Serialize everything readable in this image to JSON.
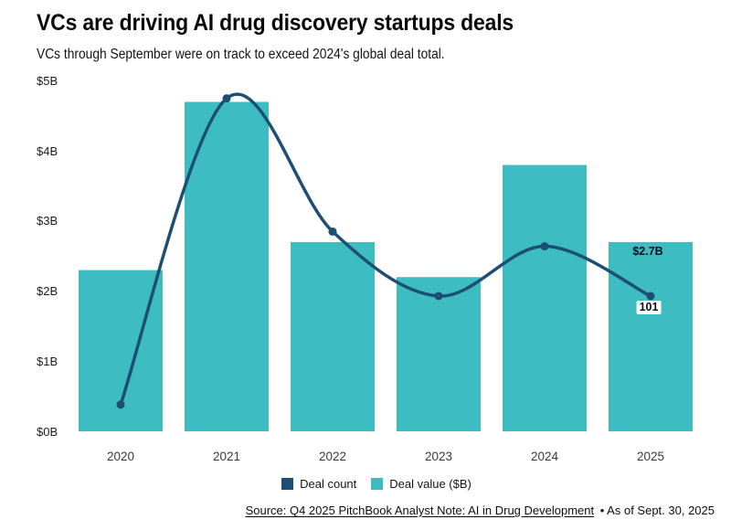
{
  "header": {
    "title": "VCs are driving AI drug discovery startups deals",
    "subtitle": "VCs through September were on track to exceed 2024's global deal total."
  },
  "chart_data": {
    "type": "bar",
    "combo": "bar+line",
    "title": "VCs are driving AI drug discovery startups deals",
    "categories": [
      "2020",
      "2021",
      "2022",
      "2023",
      "2024",
      "2025"
    ],
    "series": [
      {
        "name": "Deal value ($B)",
        "type": "bar",
        "color": "#3dbdc2",
        "values": [
          2.3,
          4.7,
          2.7,
          2.2,
          3.8,
          2.7
        ]
      },
      {
        "name": "Deal count",
        "type": "line",
        "color": "#1d4e74",
        "axis": "secondary-unlabeled",
        "left_axis_equivalent_values": [
          0.38,
          4.75,
          2.85,
          1.93,
          2.64,
          1.93
        ],
        "estimated_counts": [
          20,
          249,
          149,
          101,
          139,
          101
        ],
        "labeled_point": {
          "category": "2025",
          "label": "101"
        }
      }
    ],
    "xlabel": "",
    "ylabel": "",
    "value_axis_ticks": [
      "$0B",
      "$1B",
      "$2B",
      "$3B",
      "$4B",
      "$5B"
    ],
    "ylim": [
      0,
      5
    ],
    "grid": false,
    "legend_position": "bottom",
    "data_labels": [
      {
        "series": "Deal value ($B)",
        "category": "2025",
        "text": "$2.7B"
      },
      {
        "series": "Deal count",
        "category": "2025",
        "text": "101"
      }
    ]
  },
  "footer": {
    "source_link": "Source: Q4 2025 PitchBook Analyst Note: AI in Drug Development",
    "as_of": "• As of Sept. 30, 2025"
  }
}
